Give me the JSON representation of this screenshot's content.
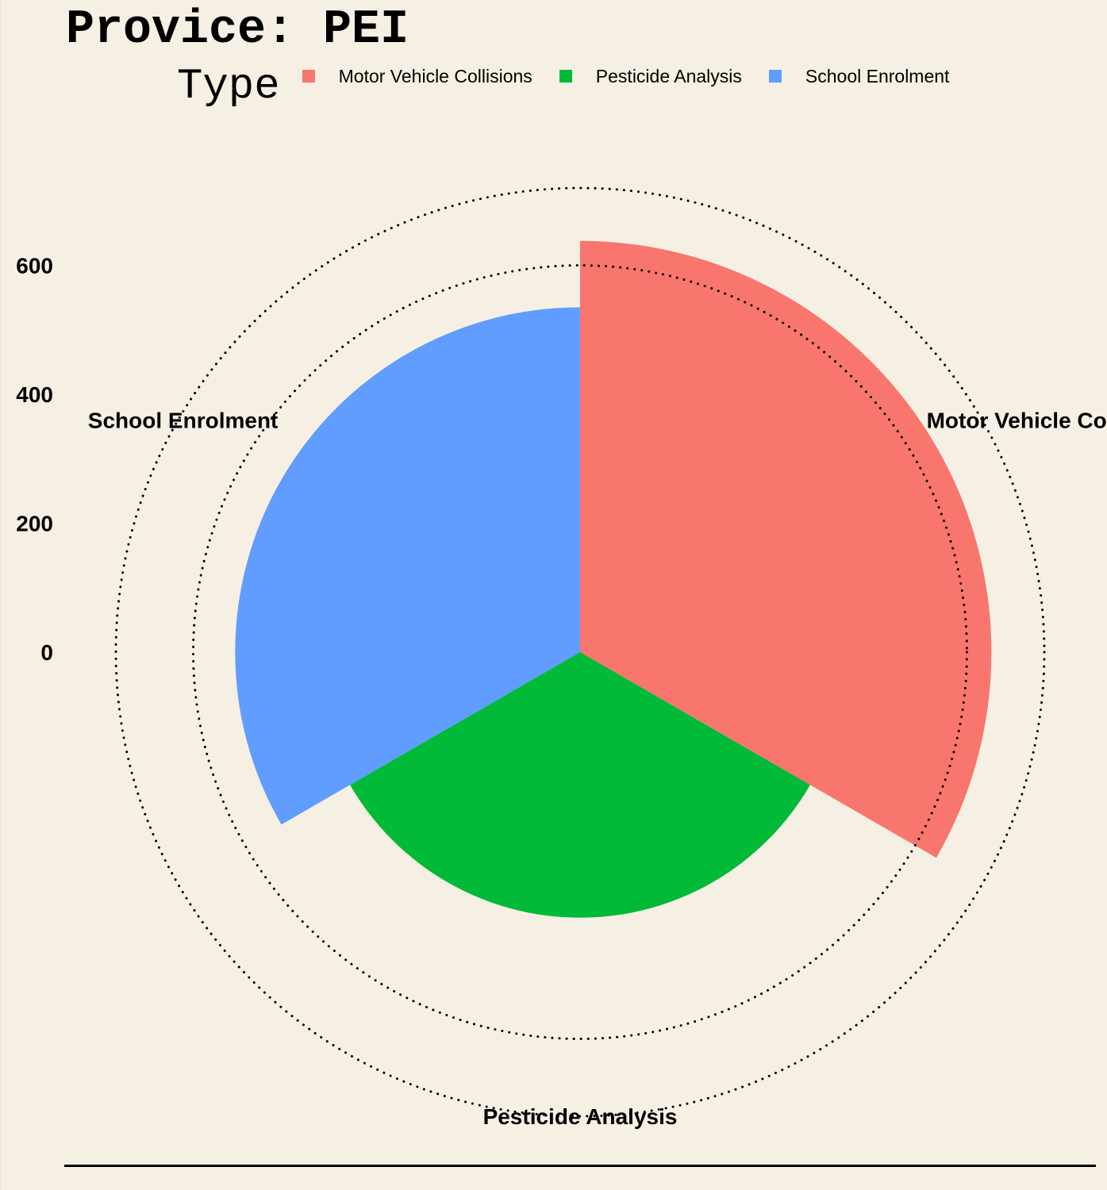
{
  "title": "Provice: PEI",
  "legend": {
    "title": "Type",
    "items": [
      {
        "label": "Motor Vehicle Collisions",
        "color": "#F8766D"
      },
      {
        "label": "Pesticide Analysis",
        "color": "#00BA38"
      },
      {
        "label": "School Enrolment",
        "color": "#619CFF"
      }
    ]
  },
  "chart_data": {
    "type": "bar",
    "coord": "polar",
    "title": "Provice: PEI",
    "categories": [
      "Motor Vehicle Collisions",
      "Pesticide Analysis",
      "School Enrolment"
    ],
    "values": [
      638,
      412,
      535
    ],
    "colors": [
      "#F8766D",
      "#00BA38",
      "#619CFF"
    ],
    "y_ticks": [
      0,
      200,
      400,
      600
    ],
    "ylim": [
      0,
      720
    ],
    "legend_position": "top",
    "grid": {
      "major_lines": "dotted",
      "color": "#000000"
    }
  }
}
